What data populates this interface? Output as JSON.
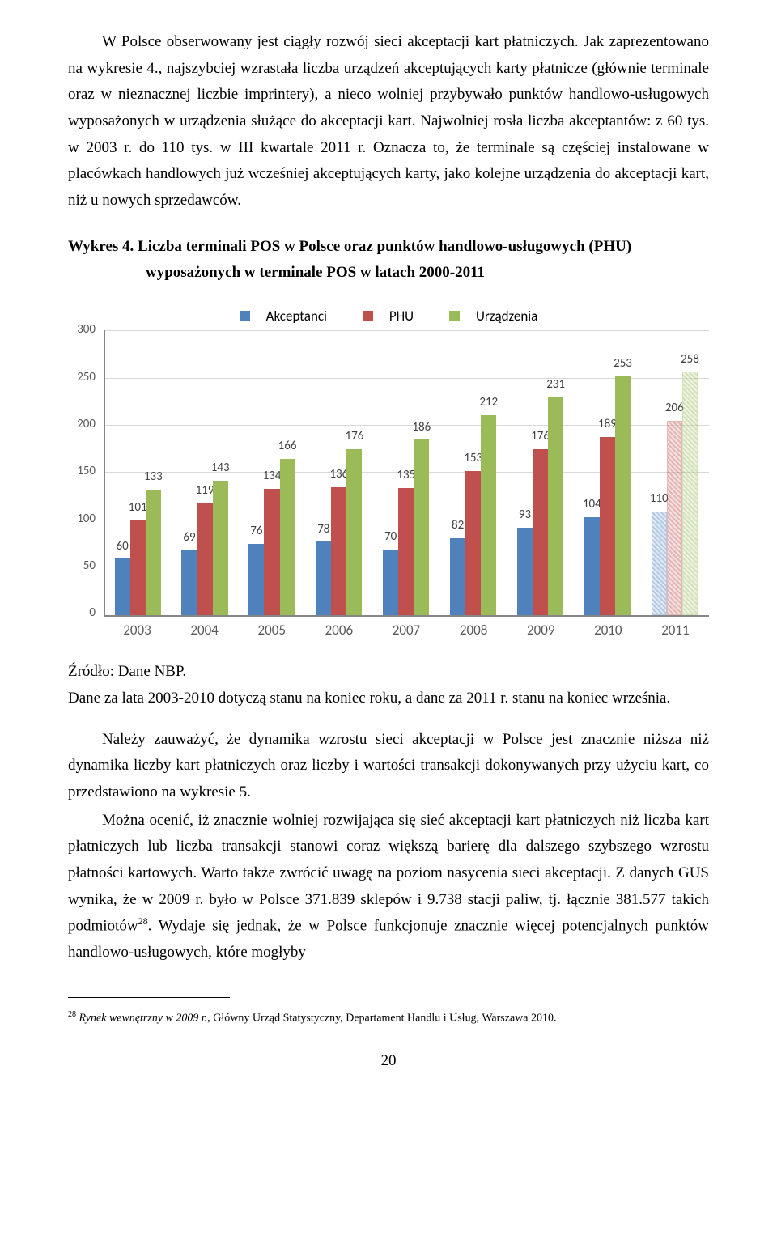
{
  "paragraph1": "W Polsce obserwowany jest ciągły rozwój sieci akceptacji kart płatniczych. Jak zaprezentowano na wykresie 4., najszybciej wzrastała liczba urządzeń akceptujących karty płatnicze (głównie terminale oraz w nieznacznej liczbie imprintery), a nieco wolniej przybywało punktów handlowo-usługowych wyposażonych w urządzenia służące do akceptacji kart. Najwolniej rosła liczba akceptantów: z 60 tys. w 2003 r. do 110 tys. w III kwartale 2011 r. Oznacza to, że terminale są częściej instalowane w placówkach handlowych już wcześniej akceptujących karty, jako kolejne urządzenia do akceptacji kart, niż u nowych sprzedawców.",
  "chartTitle": {
    "line1": "Wykres 4. Liczba terminali POS w Polsce oraz punktów handlowo-usługowych (PHU)",
    "line2": "wyposażonych w terminale POS w latach 2000-2011"
  },
  "legend": {
    "items": [
      {
        "label": "Akceptanci",
        "color": "#4f81bd"
      },
      {
        "label": "PHU",
        "color": "#c0504d"
      },
      {
        "label": "Urządzenia",
        "color": "#9bbb59"
      }
    ]
  },
  "chart": {
    "gridColor": "#d9d9d9",
    "ymax": 300,
    "yticks": [
      0,
      50,
      100,
      150,
      200,
      250,
      300
    ],
    "categories": [
      "2003",
      "2004",
      "2005",
      "2006",
      "2007",
      "2008",
      "2009",
      "2010",
      "2011"
    ],
    "series": [
      {
        "name": "Akceptanci",
        "color": "#4f81bd",
        "values": [
          60,
          69,
          76,
          78,
          70,
          82,
          93,
          104,
          110
        ]
      },
      {
        "name": "PHU",
        "color": "#c0504d",
        "values": [
          101,
          119,
          134,
          136,
          135,
          153,
          176,
          189,
          206
        ]
      },
      {
        "name": "Urządzenia",
        "color": "#9bbb59",
        "values": [
          133,
          143,
          166,
          176,
          186,
          212,
          231,
          253,
          258
        ]
      }
    ],
    "lastFaded": true,
    "barWidthPct": 23,
    "barGapPct": 0,
    "groupInnerStartPct": 14
  },
  "source": "Źródło: Dane NBP.",
  "chartNote": "Dane za lata 2003-2010 dotyczą stanu na koniec roku, a dane za 2011 r. stanu na koniec września.",
  "paragraph2": "Należy zauważyć, że dynamika wzrostu sieci akceptacji w Polsce jest znacznie niższa niż dynamika liczby kart płatniczych oraz liczby i wartości transakcji dokonywanych przy użyciu kart, co przedstawiono na wykresie 5.",
  "paragraph3a": "Można ocenić, iż znacznie wolniej rozwijająca się sieć akceptacji kart płatniczych niż liczba kart płatniczych lub liczba transakcji stanowi coraz większą barierę dla dalszego szybszego wzrostu płatności kartowych. Warto także zwrócić uwagę na poziom nasycenia sieci akceptacji. Z danych GUS wynika, że w 2009 r. było w Polsce 371.839 sklepów i 9.738 stacji paliw, tj. łącznie 381.577 takich podmiotów",
  "paragraph3_ref": "28",
  "paragraph3b": ". Wydaje się jednak, że w Polsce funkcjonuje znacznie więcej potencjalnych punktów handlowo-usługowych, które mogłyby",
  "footnote": {
    "num": "28",
    "text": " Rynek wewnętrzny w 2009 r.",
    "rest": ", Główny Urząd Statystyczny, Departament Handlu i Usług, Warszawa 2010."
  },
  "pageNumber": "20"
}
